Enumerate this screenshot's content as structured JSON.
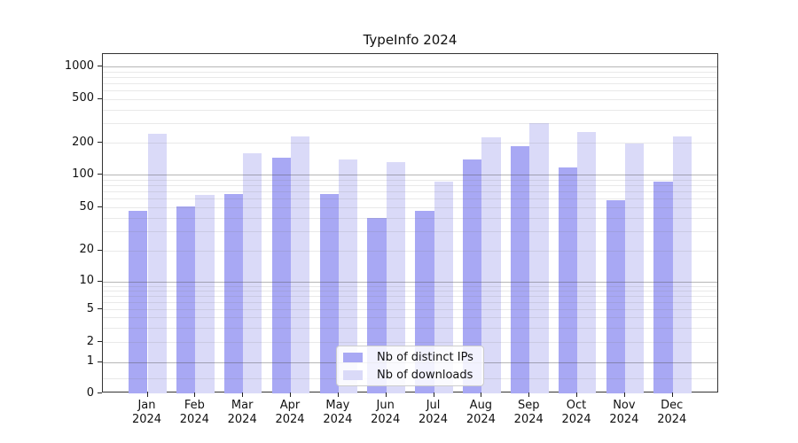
{
  "title": "TypeInfo 2024",
  "legend": {
    "position": "lower center",
    "items": [
      {
        "label": "Nb of distinct IPs",
        "color": "#a8a8f4"
      },
      {
        "label": "Nb of downloads",
        "color": "#dadaf8"
      }
    ]
  },
  "chart_data": {
    "type": "bar",
    "title": "TypeInfo 2024",
    "categories": [
      {
        "line1": "Jan",
        "line2": "2024"
      },
      {
        "line1": "Feb",
        "line2": "2024"
      },
      {
        "line1": "Mar",
        "line2": "2024"
      },
      {
        "line1": "Apr",
        "line2": "2024"
      },
      {
        "line1": "May",
        "line2": "2024"
      },
      {
        "line1": "Jun",
        "line2": "2024"
      },
      {
        "line1": "Jul",
        "line2": "2024"
      },
      {
        "line1": "Aug",
        "line2": "2024"
      },
      {
        "line1": "Sep",
        "line2": "2024"
      },
      {
        "line1": "Oct",
        "line2": "2024"
      },
      {
        "line1": "Nov",
        "line2": "2024"
      },
      {
        "line1": "Dec",
        "line2": "2024"
      }
    ],
    "series": [
      {
        "name": "Nb of distinct IPs",
        "color": "#a8a8f4",
        "values": [
          47,
          51,
          67,
          144,
          67,
          40,
          47,
          138,
          184,
          117,
          58,
          86
        ]
      },
      {
        "name": "Nb of downloads",
        "color": "#dadaf8",
        "values": [
          240,
          65,
          160,
          226,
          139,
          131,
          86,
          223,
          300,
          252,
          198,
          228
        ]
      }
    ],
    "xlabel": "",
    "ylabel": "",
    "y_axis": {
      "scale": "symlog-like (log above 1, compressed linear toward 0)",
      "tick_labels": [
        "1000",
        "500",
        "200",
        "100",
        "50",
        "20",
        "10",
        "5",
        "2",
        "1",
        "0"
      ],
      "range_top_value": 1300
    },
    "grid": {
      "on": true,
      "drawn_above_bars": true,
      "major_values": [
        1,
        10,
        100,
        1000
      ],
      "minor_values": [
        0.5,
        2,
        3,
        4,
        5,
        6,
        7,
        8,
        9,
        20,
        30,
        40,
        50,
        60,
        70,
        80,
        90,
        200,
        300,
        400,
        500,
        600,
        700,
        800,
        900
      ]
    },
    "legend_position": "lower center"
  }
}
